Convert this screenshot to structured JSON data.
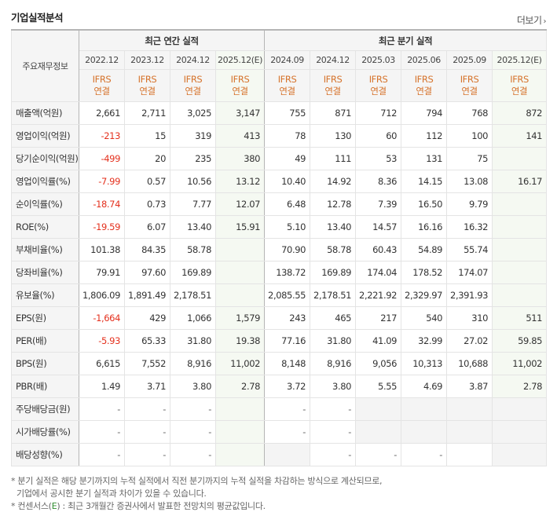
{
  "title": "기업실적분석",
  "more_label": "더보기",
  "corner_label": "주요재무정보",
  "group_annual": "최근 연간 실적",
  "group_quarter": "최근 분기 실적",
  "periods": [
    "2022.12",
    "2023.12",
    "2024.12",
    "2025.12(E)",
    "2024.09",
    "2024.12",
    "2025.03",
    "2025.06",
    "2025.09",
    "2025.12(E)"
  ],
  "ifrs_top": "IFRS",
  "ifrs_bottom": "연결",
  "rows": [
    {
      "label": "매출액(억원)",
      "values": [
        "2,661",
        "2,711",
        "3,025",
        "3,147",
        "755",
        "871",
        "712",
        "794",
        "768",
        "872"
      ]
    },
    {
      "label": "영업이익(억원)",
      "values": [
        "-213",
        "15",
        "319",
        "413",
        "78",
        "130",
        "60",
        "112",
        "100",
        "141"
      ]
    },
    {
      "label": "당기순이익(억원)",
      "values": [
        "-499",
        "20",
        "235",
        "380",
        "49",
        "111",
        "53",
        "131",
        "75",
        ""
      ]
    },
    {
      "label": "영업이익률(%)",
      "values": [
        "-7.99",
        "0.57",
        "10.56",
        "13.12",
        "10.40",
        "14.92",
        "8.36",
        "14.15",
        "13.08",
        "16.17"
      ]
    },
    {
      "label": "순이익률(%)",
      "values": [
        "-18.74",
        "0.73",
        "7.77",
        "12.07",
        "6.48",
        "12.78",
        "7.39",
        "16.50",
        "9.79",
        ""
      ]
    },
    {
      "label": "ROE(%)",
      "values": [
        "-19.59",
        "6.07",
        "13.40",
        "15.91",
        "5.10",
        "13.40",
        "14.57",
        "16.16",
        "16.32",
        ""
      ]
    },
    {
      "label": "부채비율(%)",
      "values": [
        "101.38",
        "84.35",
        "58.78",
        "",
        "70.90",
        "58.78",
        "60.43",
        "54.89",
        "55.74",
        ""
      ]
    },
    {
      "label": "당좌비율(%)",
      "values": [
        "79.91",
        "97.60",
        "169.89",
        "",
        "138.72",
        "169.89",
        "174.04",
        "178.52",
        "174.07",
        ""
      ]
    },
    {
      "label": "유보율(%)",
      "values": [
        "1,806.09",
        "1,891.49",
        "2,178.51",
        "",
        "2,085.55",
        "2,178.51",
        "2,221.92",
        "2,329.97",
        "2,391.93",
        ""
      ]
    },
    {
      "label": "EPS(원)",
      "values": [
        "-1,664",
        "429",
        "1,066",
        "1,579",
        "243",
        "465",
        "217",
        "540",
        "310",
        "511"
      ]
    },
    {
      "label": "PER(배)",
      "values": [
        "-5.93",
        "65.33",
        "31.80",
        "19.38",
        "77.16",
        "31.80",
        "41.09",
        "32.99",
        "27.02",
        "59.85"
      ]
    },
    {
      "label": "BPS(원)",
      "values": [
        "6,615",
        "7,552",
        "8,916",
        "11,002",
        "8,148",
        "8,916",
        "9,056",
        "10,313",
        "10,688",
        "11,002"
      ]
    },
    {
      "label": "PBR(배)",
      "values": [
        "1.49",
        "3.71",
        "3.80",
        "2.78",
        "3.72",
        "3.80",
        "5.55",
        "4.69",
        "3.87",
        "2.78"
      ]
    },
    {
      "label": "주당배당금(원)",
      "values": [
        "-",
        "-",
        "-",
        "",
        "-",
        "-",
        "",
        "",
        "",
        ""
      ]
    },
    {
      "label": "시가배당률(%)",
      "values": [
        "-",
        "-",
        "-",
        "",
        "-",
        "-",
        "",
        "",
        "",
        ""
      ]
    },
    {
      "label": "배당성향(%)",
      "values": [
        "-",
        "-",
        "-",
        "",
        "",
        "-",
        "-",
        "-",
        "",
        ""
      ]
    }
  ],
  "notes": {
    "line1": "분기 실적은 해당 분기까지의 누적 실적에서 직전 분기까지의 누적 실적을 차감하는 방식으로 계산되므로,",
    "line2": "기업에서 공시한 분기 실적과 차이가 있을 수 있습니다.",
    "line3_prefix": "컨센서스(",
    "line3_e": "E",
    "line3_suffix": ") : 최근 3개월간 증권사에서 발표한 전망치의 평균값입니다."
  },
  "colors": {
    "negative": "#e4311e",
    "ifrs": "#d6732c",
    "estimate_bg": "#f5f9f2"
  }
}
